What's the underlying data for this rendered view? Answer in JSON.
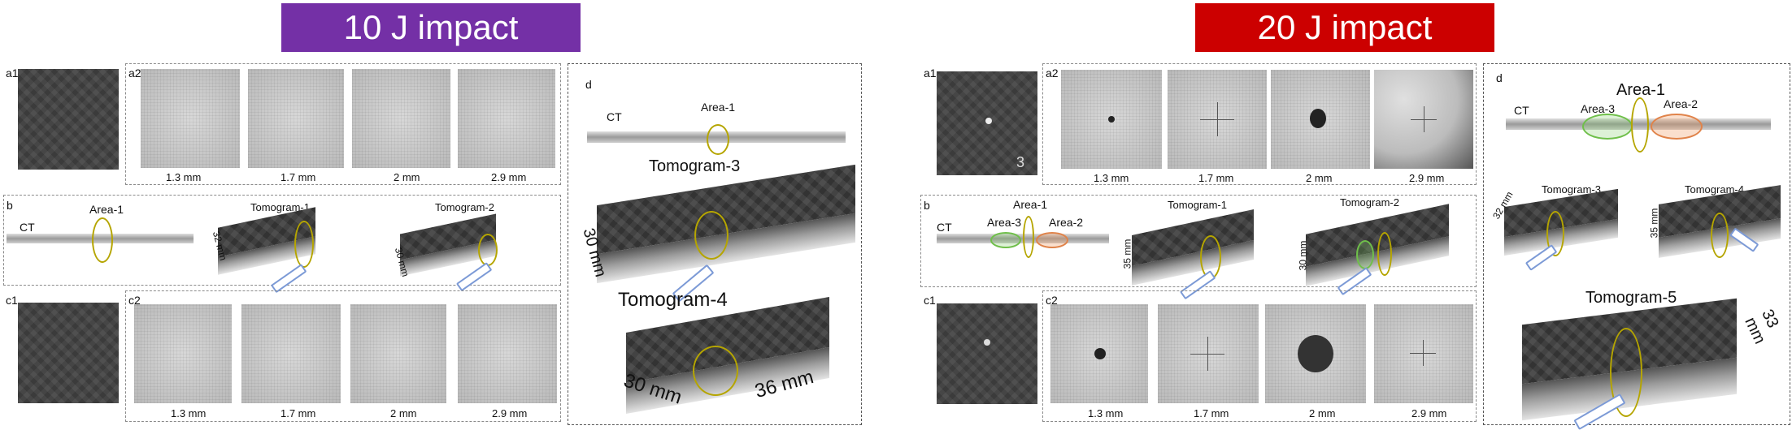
{
  "left": {
    "banner": {
      "title": "10 J impact",
      "color": "#7430a6"
    },
    "a1": "a1",
    "a2": "a2",
    "b": "b",
    "c1": "c1",
    "c2": "c2",
    "d": "d",
    "a2_captions": [
      "1.3 mm",
      "1.7 mm",
      "2 mm",
      "2.9 mm"
    ],
    "c2_captions": [
      "1.3 mm",
      "1.7 mm",
      "2 mm",
      "2.9 mm"
    ],
    "b_ct": "CT",
    "b_area1": "Area-1",
    "b_tomo1": "Tomogram-1",
    "b_tomo2": "Tomogram-2",
    "b_dim1": "32 mm",
    "b_dim2": "30 mm",
    "d_ct": "CT",
    "d_area1": "Area-1",
    "d_tomo3": "Tomogram-3",
    "d_dim3": "30 mm",
    "d_tomo4": "Tomogram-4",
    "d_dim4a": "30 mm",
    "d_dim4b": "36 mm"
  },
  "right": {
    "banner": {
      "title": "20 J impact",
      "color": "#cc0000"
    },
    "a1": "a1",
    "a2": "a2",
    "b": "b",
    "c1": "c1",
    "c2": "c2",
    "d": "d",
    "a2_captions": [
      "1.3 mm",
      "1.7 mm",
      "2 mm",
      "2.9 mm"
    ],
    "c2_captions": [
      "1.3 mm",
      "1.7 mm",
      "2 mm",
      "2.9 mm"
    ],
    "a1_mark": "3",
    "b_ct": "CT",
    "b_area1": "Area-1",
    "b_area2": "Area-2",
    "b_area3": "Area-3",
    "b_tomo1": "Tomogram-1",
    "b_tomo2": "Tomogram-2",
    "b_dim1": "35 mm",
    "b_dim2": "30 mm",
    "d_ct": "CT",
    "d_area1": "Area-1",
    "d_area2": "Area-2",
    "d_area3": "Area-3",
    "d_tomo3": "Tomogram-3",
    "d_tomo4": "Tomogram-4",
    "d_dim3": "32 mm",
    "d_dim4": "35 mm",
    "d_tomo5": "Tomogram-5",
    "d_dim5": "33 mm"
  }
}
